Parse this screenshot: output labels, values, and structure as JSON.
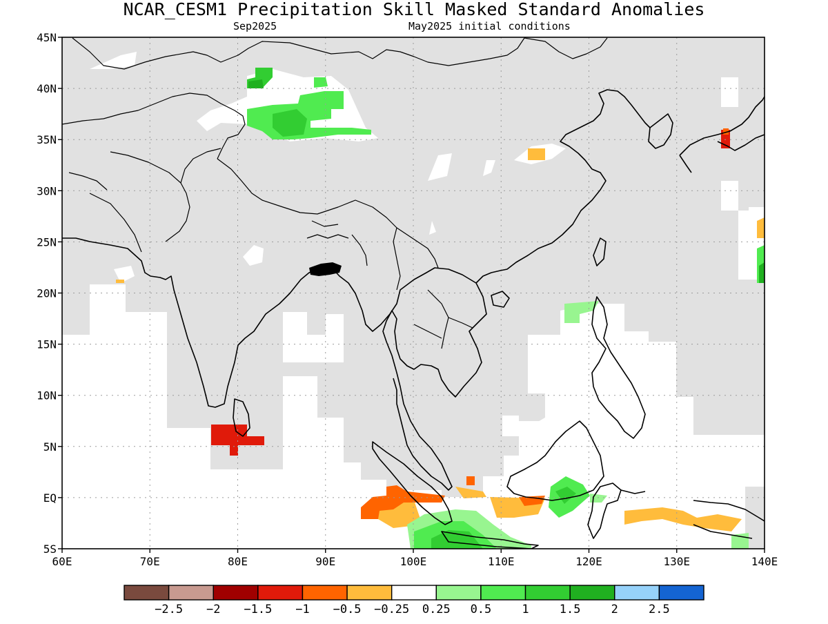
{
  "title": "NCAR_CESM1 Precipitation Skill Masked Standard Anomalies",
  "valid_period": "Sep2025",
  "initial_conditions": "May2025 initial conditions",
  "colors": {
    "masked": "#e1e1e1",
    "coast": "#000000",
    "grid": "#9a9a9a"
  },
  "map": {
    "lat_ticks": [
      "45N",
      "40N",
      "35N",
      "30N",
      "25N",
      "20N",
      "15N",
      "10N",
      "5N",
      "EQ",
      "5S"
    ],
    "lon_ticks": [
      "60E",
      "70E",
      "80E",
      "90E",
      "100E",
      "110E",
      "120E",
      "130E",
      "140E"
    ]
  },
  "colorbar": {
    "colors": [
      "#7a4a3e",
      "#c89a90",
      "#a00000",
      "#e01a0a",
      "#ff6400",
      "#ffbc3c",
      "#ffffff",
      "#98f590",
      "#50eb50",
      "#32cd32",
      "#20b020",
      "#96d2fa",
      "#1464d2"
    ],
    "labels": [
      "−2.5",
      "−2",
      "−1.5",
      "−1",
      "−0.5",
      "−0.25",
      "0.25",
      "0.5",
      "1",
      "1.5",
      "2",
      "2.5"
    ]
  }
}
